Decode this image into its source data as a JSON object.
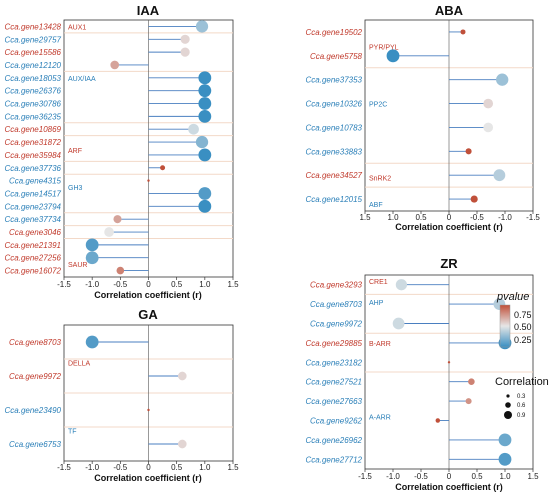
{
  "colors": {
    "red_label": "#c0392b",
    "blue_label": "#2a7fb8",
    "sep_line": "#f3d9c8",
    "stem": "#4a7fc0",
    "low": "#3a8fc2",
    "mid": "#e6e6e6",
    "high": "#c0503a"
  },
  "legend": {
    "color_title": "pvalue",
    "color_ticks": [
      "0.75",
      "0.50",
      "0.25"
    ],
    "size_title": "Correlation",
    "size_ticks": [
      "0.3",
      "0.6",
      "0.9"
    ]
  },
  "chart_data": [
    {
      "type": "lollipop",
      "title": "IAA",
      "xlabel": "Correlation coefficient (r)",
      "xlim": [
        1.5,
        -1.5
      ],
      "xticks": [
        "-1.5",
        "-1.0",
        "-0.5",
        "0",
        "0.5",
        "1.0",
        "1.5"
      ],
      "genes": [
        {
          "name": "Cca.gene13428",
          "r": 0.95,
          "p": 0.35,
          "group": "red"
        },
        {
          "name": "Cca.gene29757",
          "r": 0.65,
          "p": 0.55,
          "group": "blue"
        },
        {
          "name": "Cca.gene15586",
          "r": 0.65,
          "p": 0.55,
          "group": "red"
        },
        {
          "name": "Cca.gene12120",
          "r": -0.6,
          "p": 0.7,
          "group": "blue"
        },
        {
          "name": "Cca.gene18053",
          "r": 1.0,
          "p": 0.15,
          "group": "blue"
        },
        {
          "name": "Cca.gene26376",
          "r": 1.0,
          "p": 0.15,
          "group": "blue"
        },
        {
          "name": "Cca.gene30786",
          "r": 1.0,
          "p": 0.15,
          "group": "blue"
        },
        {
          "name": "Cca.gene36235",
          "r": 1.0,
          "p": 0.15,
          "group": "blue"
        },
        {
          "name": "Cca.gene10869",
          "r": 0.8,
          "p": 0.45,
          "group": "red"
        },
        {
          "name": "Cca.gene31872",
          "r": 0.95,
          "p": 0.3,
          "group": "red"
        },
        {
          "name": "Cca.gene35984",
          "r": 1.0,
          "p": 0.15,
          "group": "red"
        },
        {
          "name": "Cca.gene37736",
          "r": 0.25,
          "p": 0.95,
          "group": "blue"
        },
        {
          "name": "Cca.gene4315",
          "r": 0.0,
          "p": 1.0,
          "group": "blue"
        },
        {
          "name": "Cca.gene14517",
          "r": 1.0,
          "p": 0.2,
          "group": "blue"
        },
        {
          "name": "Cca.gene23794",
          "r": 1.0,
          "p": 0.15,
          "group": "blue"
        },
        {
          "name": "Cca.gene37734",
          "r": -0.55,
          "p": 0.7,
          "group": "blue"
        },
        {
          "name": "Cca.gene3046",
          "r": -0.7,
          "p": 0.5,
          "group": "red"
        },
        {
          "name": "Cca.gene21391",
          "r": -1.0,
          "p": 0.2,
          "group": "red"
        },
        {
          "name": "Cca.gene27256",
          "r": -1.0,
          "p": 0.25,
          "group": "red"
        },
        {
          "name": "Cca.gene16072",
          "r": -0.5,
          "p": 0.8,
          "group": "red"
        }
      ],
      "families": [
        {
          "label": "AUX1",
          "at": 0,
          "group": "red"
        },
        {
          "label": "AUX/IAA",
          "at": 4,
          "group": "blue"
        },
        {
          "label": "ARF",
          "at": 9.6,
          "group": "red"
        },
        {
          "label": "GH3",
          "at": 12.5,
          "group": "blue"
        },
        {
          "label": "SAUR",
          "at": 18.5,
          "group": "red"
        }
      ],
      "separators": [
        0.5,
        3.5,
        7.5,
        8.5,
        10.5,
        11.5,
        14.5,
        15.5,
        16.5
      ]
    },
    {
      "type": "lollipop",
      "title": "ABA",
      "xlabel": "Correlation coefficient (r)",
      "xlim": [
        1.5,
        -1.5
      ],
      "xticks": [
        "1.5",
        "1.0",
        "0.5",
        "0",
        "-0.5",
        "-1.0",
        "-1.5"
      ],
      "genes": [
        {
          "name": "Cca.gene19502",
          "r": -0.25,
          "p": 0.95,
          "group": "red"
        },
        {
          "name": "Cca.gene5758",
          "r": 1.0,
          "p": 0.15,
          "group": "red"
        },
        {
          "name": "Cca.gene37353",
          "r": -0.95,
          "p": 0.35,
          "group": "blue"
        },
        {
          "name": "Cca.gene10326",
          "r": -0.7,
          "p": 0.55,
          "group": "blue"
        },
        {
          "name": "Cca.gene10783",
          "r": -0.7,
          "p": 0.5,
          "group": "blue"
        },
        {
          "name": "Cca.gene33883",
          "r": -0.35,
          "p": 0.95,
          "group": "blue"
        },
        {
          "name": "Cca.gene34527",
          "r": -0.9,
          "p": 0.4,
          "group": "red"
        },
        {
          "name": "Cca.gene12015",
          "r": -0.45,
          "p": 0.95,
          "group": "blue"
        }
      ],
      "families": [
        {
          "label": "PYR/PYL",
          "at": 0.6,
          "group": "red"
        },
        {
          "label": "PP2C",
          "at": 3.0,
          "group": "blue"
        },
        {
          "label": "SnRK2",
          "at": 6.1,
          "group": "red"
        },
        {
          "label": "ABF",
          "at": 7.2,
          "group": "blue"
        }
      ],
      "separators": [
        1.5,
        5.5,
        6.5
      ]
    },
    {
      "type": "lollipop",
      "title": "GA",
      "xlabel": "Correlation coefficient (r)",
      "xlim": [
        1.5,
        -1.5
      ],
      "xticks": [
        "-1.5",
        "-1.0",
        "-0.5",
        "0",
        "0.5",
        "1.0",
        "1.5"
      ],
      "genes": [
        {
          "name": "Cca.gene8703",
          "r": -1.0,
          "p": 0.2,
          "group": "red"
        },
        {
          "name": "Cca.gene9972",
          "r": 0.6,
          "p": 0.55,
          "group": "red"
        },
        {
          "name": "Cca.gene23490",
          "r": 0.0,
          "p": 1.0,
          "group": "blue"
        },
        {
          "name": "Cca.gene6753",
          "r": 0.6,
          "p": 0.55,
          "group": "blue"
        }
      ],
      "families": [
        {
          "label": "DELLA",
          "at": 0.6,
          "group": "red"
        },
        {
          "label": "TF",
          "at": 2.6,
          "group": "blue"
        }
      ],
      "separators": [
        0.5,
        1.5,
        2.5
      ]
    },
    {
      "type": "lollipop",
      "title": "ZR",
      "xlabel": "Correlation coefficient (r)",
      "xlim": [
        1.5,
        -1.5
      ],
      "xticks": [
        "-1.5",
        "-1.0",
        "-0.5",
        "0",
        "0.5",
        "1.0",
        "1.5"
      ],
      "genes": [
        {
          "name": "Cca.gene3293",
          "r": -0.85,
          "p": 0.45,
          "group": "red"
        },
        {
          "name": "Cca.gene8703",
          "r": 0.9,
          "p": 0.4,
          "group": "blue"
        },
        {
          "name": "Cca.gene9972",
          "r": -0.9,
          "p": 0.45,
          "group": "blue"
        },
        {
          "name": "Cca.gene29885",
          "r": 1.0,
          "p": 0.15,
          "group": "red"
        },
        {
          "name": "Cca.gene23182",
          "r": 0.0,
          "p": 1.0,
          "group": "blue"
        },
        {
          "name": "Cca.gene27521",
          "r": 0.4,
          "p": 0.8,
          "group": "blue"
        },
        {
          "name": "Cca.gene27663",
          "r": 0.35,
          "p": 0.75,
          "group": "blue"
        },
        {
          "name": "Cca.gene9262",
          "r": -0.2,
          "p": 0.95,
          "group": "blue"
        },
        {
          "name": "Cca.gene26962",
          "r": 1.0,
          "p": 0.25,
          "group": "blue"
        },
        {
          "name": "Cca.gene27712",
          "r": 1.0,
          "p": 0.2,
          "group": "blue"
        }
      ],
      "families": [
        {
          "label": "CRE1",
          "at": -0.2,
          "group": "red"
        },
        {
          "label": "AHP",
          "at": 0.9,
          "group": "blue"
        },
        {
          "label": "B-ARR",
          "at": 3.0,
          "group": "red"
        },
        {
          "label": "A-ARR",
          "at": 6.8,
          "group": "blue"
        }
      ],
      "separators": [
        0.5,
        2.5,
        4.5
      ]
    }
  ]
}
